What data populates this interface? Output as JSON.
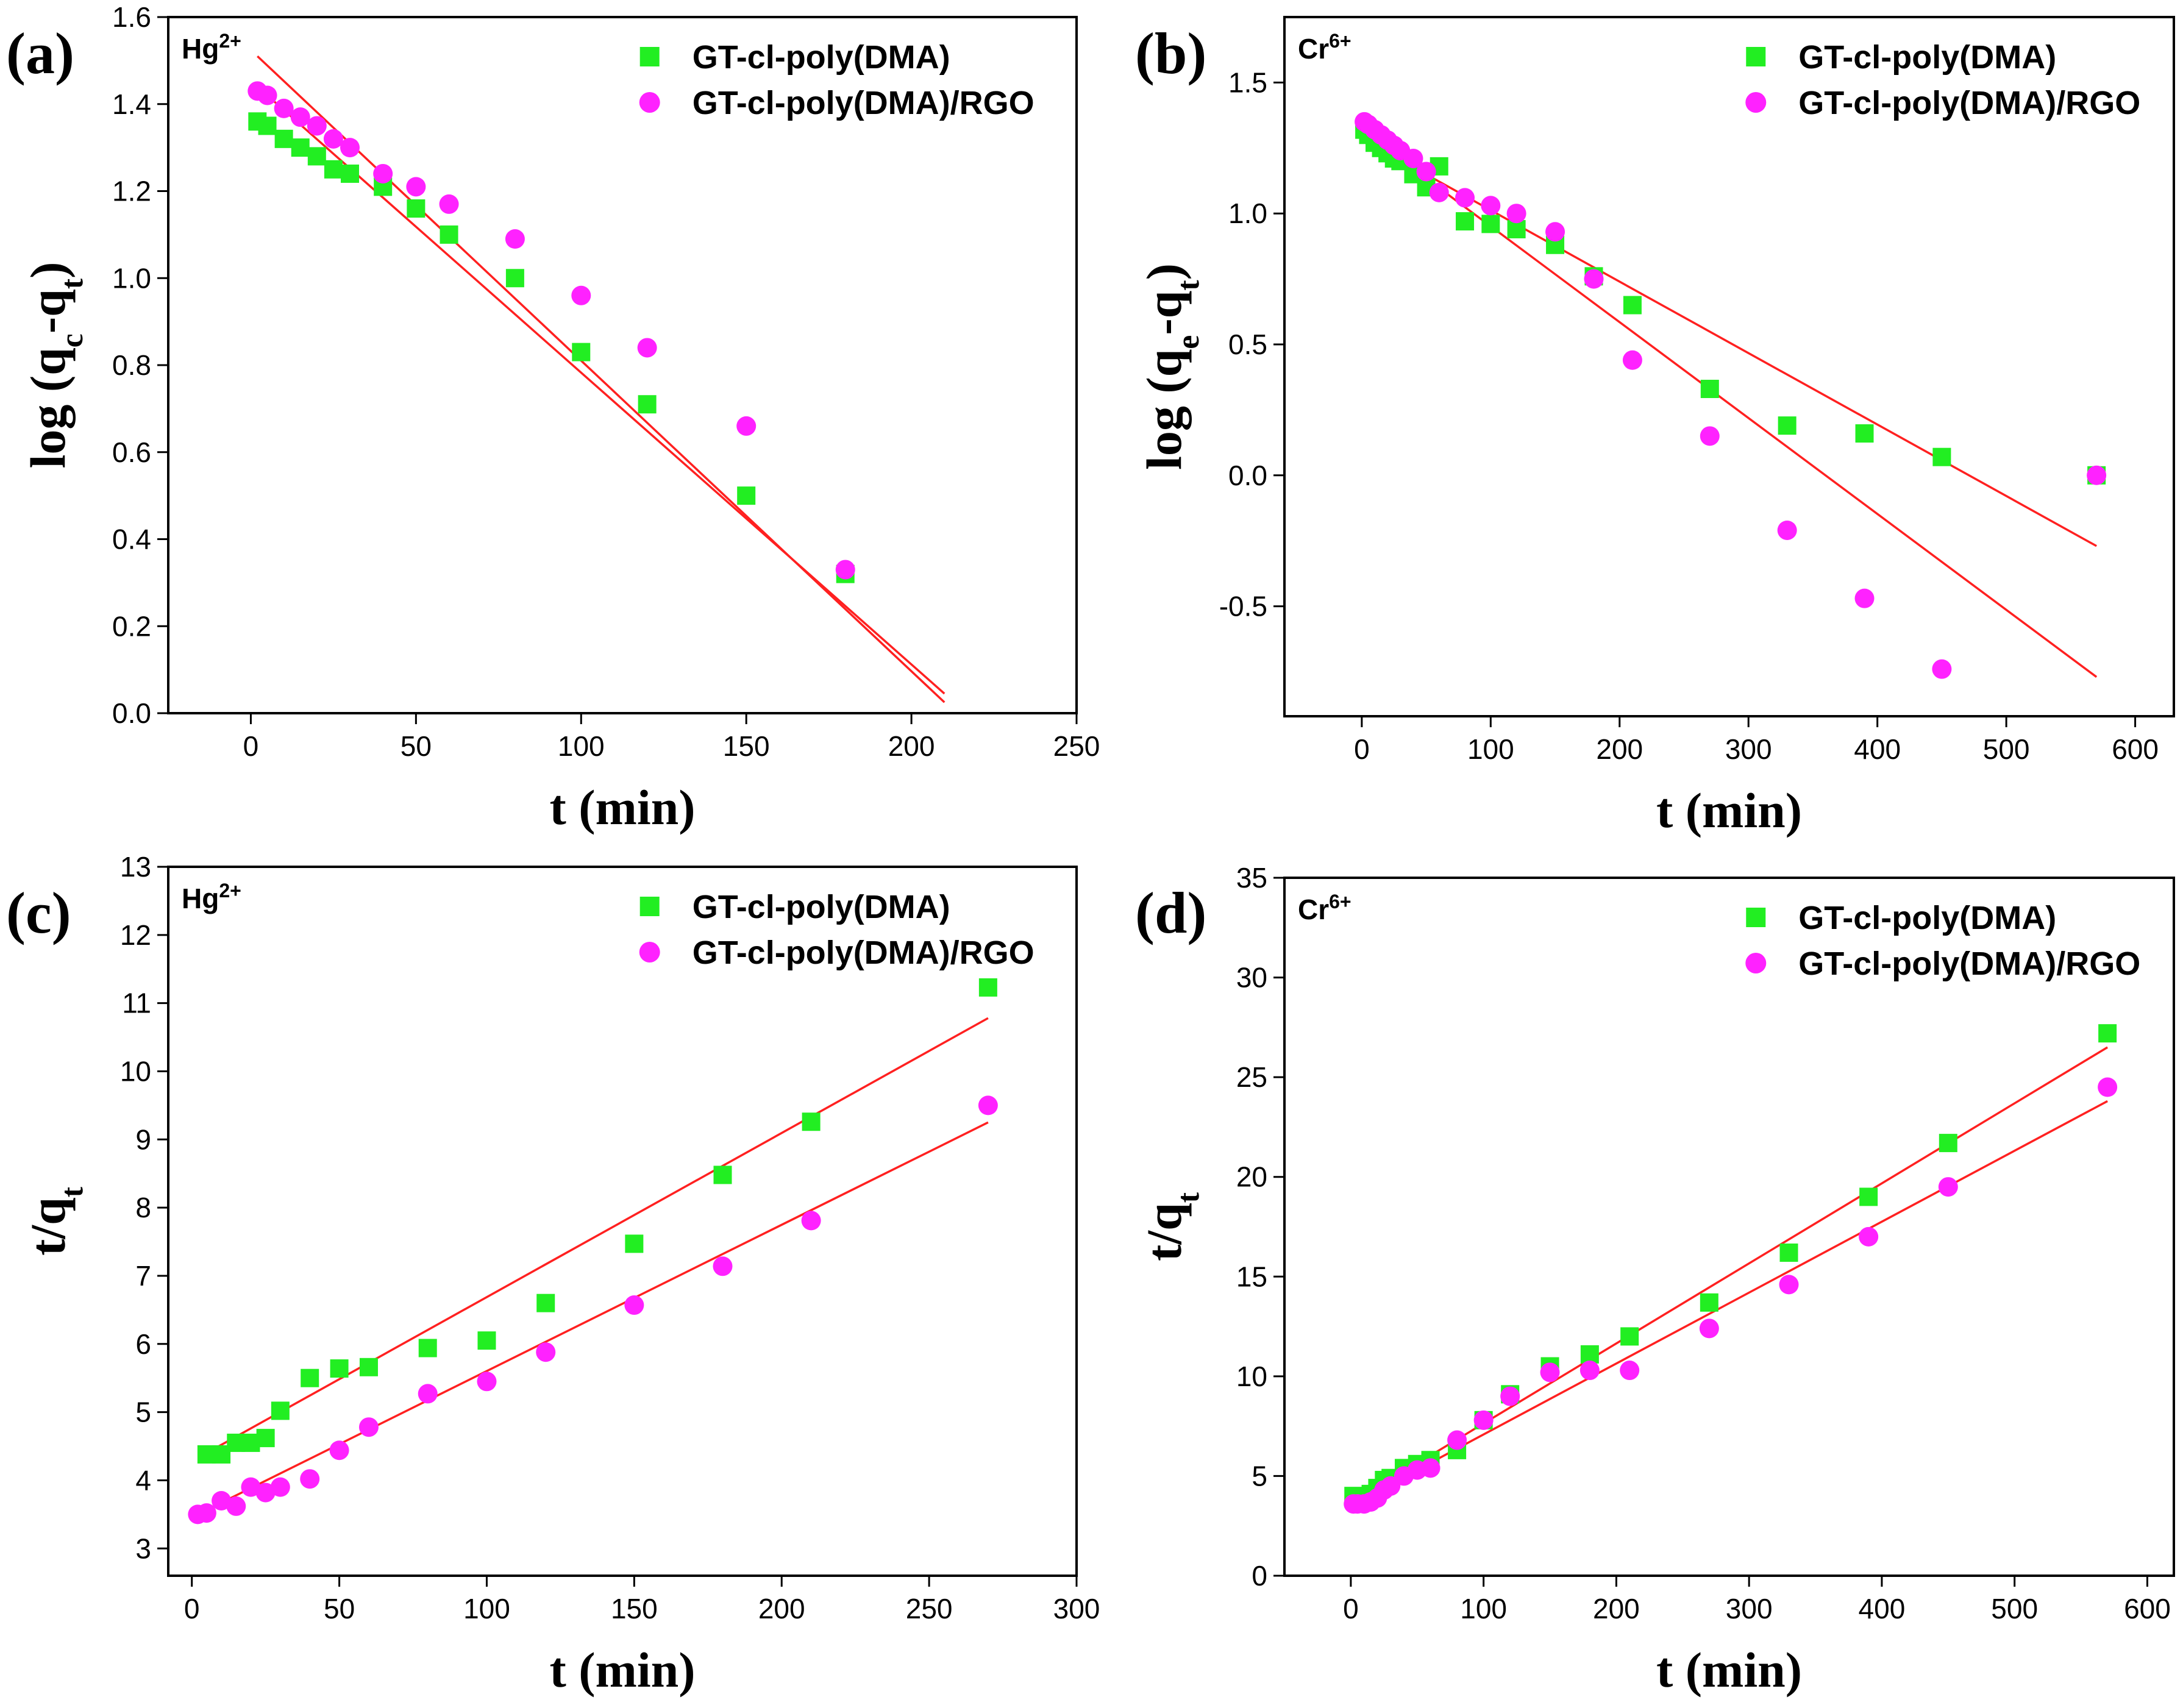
{
  "colors": {
    "series1": "#22ee22",
    "series2": "#ff22ff",
    "fit": "#ff2020",
    "axis": "#000000"
  },
  "chart_data": [
    {
      "type": "scatter",
      "panel": "(a)",
      "ion": "Hg",
      "ion_charge": "2+",
      "xlabel": "t (min)",
      "ylabel_main": "log (q",
      "ylabel_sub1": "c",
      "ylabel_mid": "-q",
      "ylabel_sub2": "t",
      "ylabel_end": ")",
      "xlim": [
        -25,
        250
      ],
      "ylim": [
        0,
        1.6
      ],
      "xticks": [
        0,
        50,
        100,
        150,
        200,
        250
      ],
      "yticks": [
        0.0,
        0.2,
        0.4,
        0.6,
        0.8,
        1.0,
        1.2,
        1.4,
        1.6
      ],
      "xtick_labels": [
        "0",
        "50",
        "100",
        "150",
        "200",
        "250"
      ],
      "ytick_labels": [
        "0.0",
        "0.2",
        "0.4",
        "0.6",
        "0.8",
        "1.0",
        "1.2",
        "1.4",
        "1.6"
      ],
      "legend_position": "top-right",
      "series": [
        {
          "name": "GT-cl-poly(DMA)",
          "marker": "square",
          "x": [
            2,
            5,
            10,
            15,
            20,
            25,
            30,
            40,
            50,
            60,
            80,
            100,
            120,
            150,
            180
          ],
          "y": [
            1.36,
            1.35,
            1.32,
            1.3,
            1.28,
            1.25,
            1.24,
            1.21,
            1.16,
            1.1,
            1.0,
            0.83,
            0.71,
            0.5,
            0.32
          ],
          "fit": [
            [
              2,
              1.44
            ],
            [
              210,
              0.045
            ]
          ]
        },
        {
          "name": "GT-cl-poly(DMA)/RGO",
          "marker": "circle",
          "x": [
            2,
            5,
            10,
            15,
            20,
            25,
            30,
            40,
            50,
            60,
            80,
            100,
            120,
            150,
            180
          ],
          "y": [
            1.43,
            1.42,
            1.39,
            1.37,
            1.35,
            1.32,
            1.3,
            1.24,
            1.21,
            1.17,
            1.09,
            0.96,
            0.84,
            0.66,
            0.33
          ],
          "fit": [
            [
              2,
              1.51
            ],
            [
              210,
              0.025
            ]
          ]
        }
      ]
    },
    {
      "type": "scatter",
      "panel": "(b)",
      "ion": "Cr",
      "ion_charge": "6+",
      "xlabel": "t (min)",
      "ylabel_main": "log (q",
      "ylabel_sub1": "e",
      "ylabel_mid": "-q",
      "ylabel_sub2": "t",
      "ylabel_end": ")",
      "xlim": [
        -60,
        630
      ],
      "ylim": [
        -0.92,
        1.75
      ],
      "xticks": [
        0,
        100,
        200,
        300,
        400,
        500,
        600
      ],
      "yticks": [
        -0.5,
        0.0,
        0.5,
        1.0,
        1.5
      ],
      "xtick_labels": [
        "0",
        "100",
        "200",
        "300",
        "400",
        "500",
        "600"
      ],
      "ytick_labels": [
        "-0.5",
        "0.0",
        "0.5",
        "1.0",
        "1.5"
      ],
      "legend_position": "top-right",
      "series": [
        {
          "name": "GT-cl-poly(DMA)",
          "marker": "square",
          "x": [
            2,
            5,
            10,
            15,
            20,
            25,
            30,
            40,
            50,
            60,
            80,
            100,
            120,
            150,
            180,
            210,
            270,
            330,
            390,
            450,
            570
          ],
          "y": [
            1.32,
            1.3,
            1.27,
            1.25,
            1.23,
            1.21,
            1.2,
            1.15,
            1.1,
            1.18,
            0.97,
            0.96,
            0.94,
            0.88,
            0.76,
            0.65,
            0.33,
            0.19,
            0.16,
            0.07,
            0.0
          ],
          "fit": [
            [
              2,
              1.28
            ],
            [
              570,
              -0.27
            ]
          ]
        },
        {
          "name": "GT-cl-poly(DMA)/RGO",
          "marker": "circle",
          "x": [
            2,
            5,
            10,
            15,
            20,
            25,
            30,
            40,
            50,
            60,
            80,
            100,
            120,
            150,
            180,
            210,
            270,
            330,
            390,
            450,
            570
          ],
          "y": [
            1.35,
            1.34,
            1.32,
            1.3,
            1.28,
            1.26,
            1.24,
            1.21,
            1.16,
            1.08,
            1.06,
            1.03,
            1.0,
            0.93,
            0.75,
            0.44,
            0.15,
            -0.21,
            -0.47,
            -0.74,
            0.0
          ],
          "fit": [
            [
              2,
              1.31
            ],
            [
              570,
              -0.77
            ]
          ]
        }
      ]
    },
    {
      "type": "scatter",
      "panel": "(c)",
      "ion": "Hg",
      "ion_charge": "2+",
      "xlabel": "t (min)",
      "ylabel_main": "t/q",
      "ylabel_sub1": "t",
      "ylabel_mid": "",
      "ylabel_sub2": "",
      "ylabel_end": "",
      "xlim": [
        -8,
        300
      ],
      "ylim": [
        2.6,
        13
      ],
      "xticks": [
        0,
        50,
        100,
        150,
        200,
        250,
        300
      ],
      "yticks": [
        3,
        4,
        5,
        6,
        7,
        8,
        9,
        10,
        11,
        12,
        13
      ],
      "xtick_labels": [
        "0",
        "50",
        "100",
        "150",
        "200",
        "250",
        "300"
      ],
      "ytick_labels": [
        "3",
        "4",
        "5",
        "6",
        "7",
        "8",
        "9",
        "10",
        "11",
        "12",
        "13"
      ],
      "legend_position": "top-right",
      "series": [
        {
          "name": "GT-cl-poly(DMA)",
          "marker": "square",
          "x": [
            5,
            10,
            15,
            20,
            25,
            30,
            40,
            50,
            60,
            80,
            100,
            120,
            150,
            180,
            210,
            270
          ],
          "y": [
            4.38,
            4.38,
            4.55,
            4.55,
            4.62,
            5.02,
            5.5,
            5.64,
            5.66,
            5.94,
            6.05,
            6.6,
            7.47,
            8.48,
            9.26,
            11.23
          ],
          "fit": [
            [
              5,
              4.4
            ],
            [
              270,
              10.78
            ]
          ]
        },
        {
          "name": "GT-cl-poly(DMA)/RGO",
          "marker": "circle",
          "x": [
            2,
            5,
            10,
            15,
            20,
            25,
            30,
            40,
            50,
            60,
            80,
            100,
            120,
            150,
            180,
            210,
            270
          ],
          "y": [
            3.5,
            3.52,
            3.7,
            3.62,
            3.9,
            3.82,
            3.9,
            4.02,
            4.44,
            4.78,
            5.27,
            5.45,
            5.88,
            6.57,
            7.14,
            7.81,
            9.5
          ],
          "fit": [
            [
              2,
              3.5
            ],
            [
              270,
              9.25
            ]
          ]
        }
      ]
    },
    {
      "type": "scatter",
      "panel": "(d)",
      "ion": "Cr",
      "ion_charge": "6+",
      "xlabel": "t (min)",
      "ylabel_main": "t/q",
      "ylabel_sub1": "t",
      "ylabel_mid": "",
      "ylabel_sub2": "",
      "ylabel_end": "",
      "xlim": [
        -50,
        620
      ],
      "ylim": [
        0,
        35
      ],
      "xticks": [
        0,
        100,
        200,
        300,
        400,
        500,
        600
      ],
      "yticks": [
        0,
        5,
        10,
        15,
        20,
        25,
        30,
        35
      ],
      "xtick_labels": [
        "0",
        "100",
        "200",
        "300",
        "400",
        "500",
        "600"
      ],
      "ytick_labels": [
        "0",
        "5",
        "10",
        "15",
        "20",
        "25",
        "30",
        "35"
      ],
      "legend_position": "top-right",
      "series": [
        {
          "name": "GT-cl-poly(DMA)",
          "marker": "square",
          "x": [
            2,
            5,
            10,
            15,
            20,
            25,
            30,
            40,
            50,
            60,
            80,
            100,
            120,
            150,
            180,
            210,
            270,
            330,
            390,
            450,
            570
          ],
          "y": [
            4.0,
            3.9,
            3.9,
            4.1,
            4.4,
            4.8,
            4.9,
            5.4,
            5.6,
            5.8,
            6.3,
            7.8,
            9.1,
            10.5,
            11.1,
            12.0,
            13.7,
            16.2,
            19.0,
            21.7,
            27.2
          ],
          "fit": [
            [
              2,
              3.7
            ],
            [
              570,
              26.5
            ]
          ]
        },
        {
          "name": "GT-cl-poly(DMA)/RGO",
          "marker": "circle",
          "x": [
            2,
            5,
            10,
            15,
            20,
            25,
            30,
            40,
            50,
            60,
            80,
            100,
            120,
            150,
            180,
            210,
            270,
            330,
            390,
            450,
            570
          ],
          "y": [
            3.6,
            3.6,
            3.6,
            3.7,
            3.9,
            4.3,
            4.5,
            5.0,
            5.3,
            5.4,
            6.8,
            7.8,
            9.0,
            10.2,
            10.3,
            10.3,
            12.4,
            14.6,
            17.0,
            19.5,
            24.5
          ],
          "fit": [
            [
              2,
              3.6
            ],
            [
              570,
              23.8
            ]
          ]
        }
      ]
    }
  ]
}
